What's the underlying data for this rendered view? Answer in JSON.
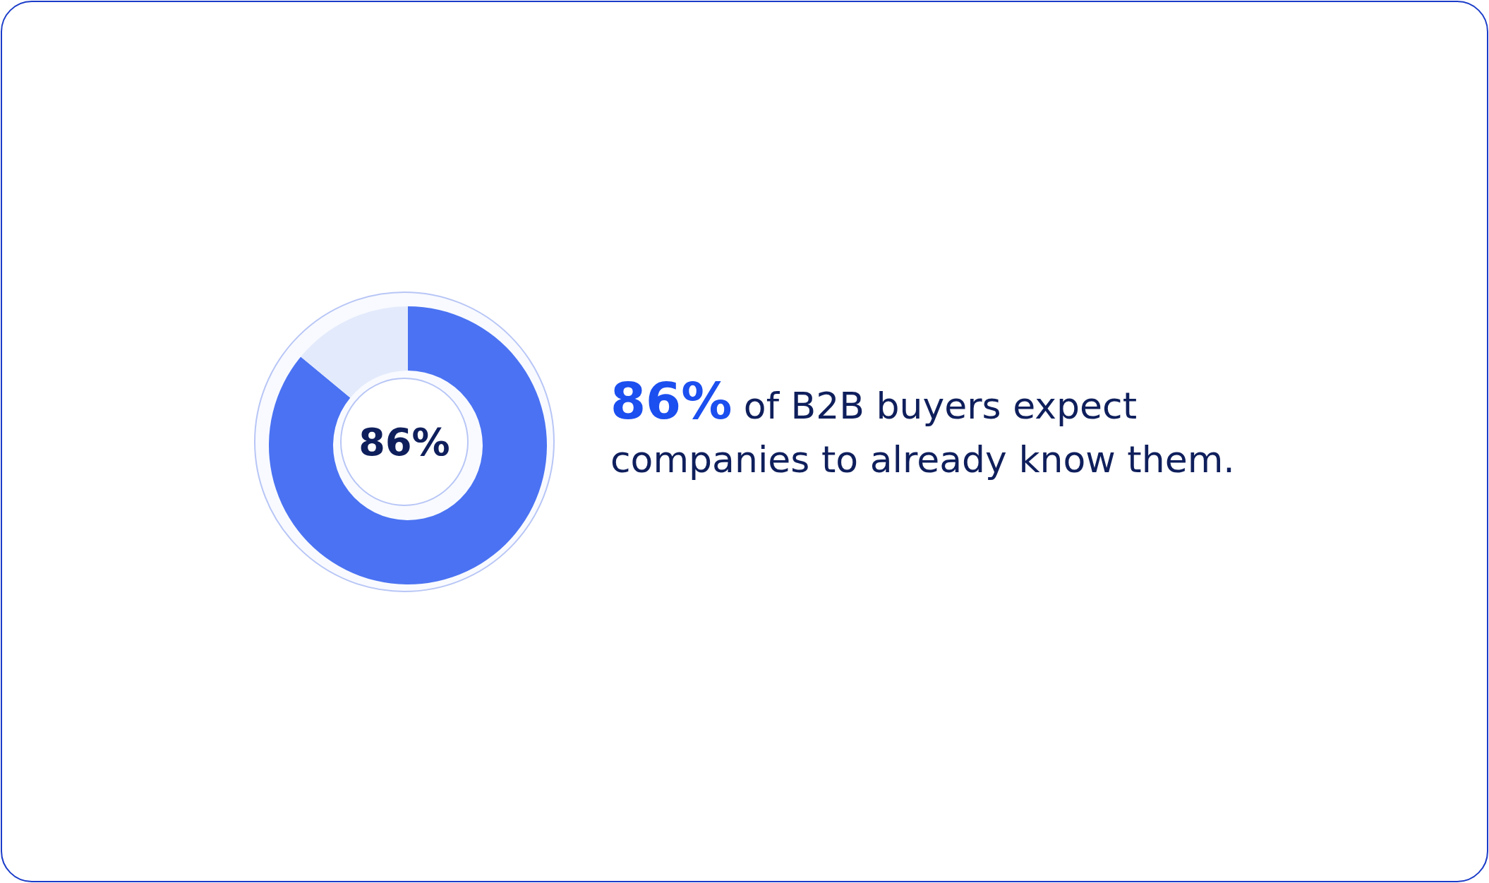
{
  "chart_data": {
    "type": "donut",
    "title": "86% of B2B buyers expect companies to already know them.",
    "categories": [
      null,
      null
    ],
    "values": [
      86,
      14
    ],
    "colors": [
      "#4a72f2",
      "#e3eafc"
    ],
    "value_labels": [
      "86%",
      null
    ]
  }
}
